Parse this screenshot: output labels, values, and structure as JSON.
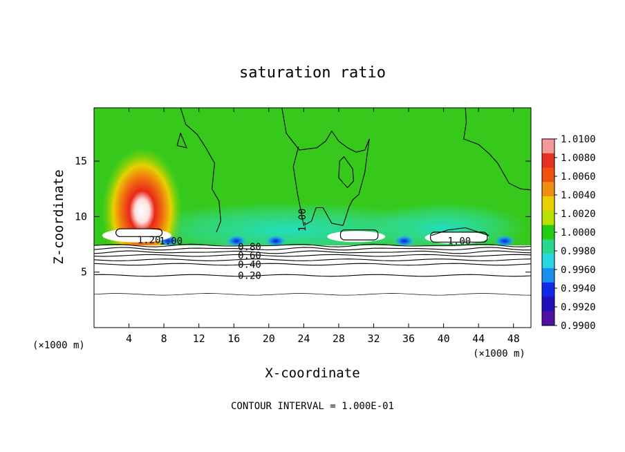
{
  "chart_data": {
    "type": "heatmap",
    "title": "saturation ratio",
    "xlabel": "X-coordinate",
    "ylabel": "Z-coordinate",
    "x_unit": "(×1000 m)",
    "x_unit_right": "(×1000 m)",
    "xlim": [
      0,
      50
    ],
    "ylim": [
      0,
      19.8
    ],
    "x_ticks": [
      4,
      8,
      12,
      16,
      20,
      24,
      28,
      32,
      36,
      40,
      44,
      48
    ],
    "y_ticks": [
      5,
      10,
      15
    ],
    "footer": "CONTOUR INTERVAL = 1.000E-01",
    "colorbar": {
      "min": 0.99,
      "max": 1.01,
      "labels": [
        "1.0100",
        "1.0080",
        "1.0060",
        "1.0040",
        "1.0020",
        "1.0000",
        "0.9980",
        "0.9960",
        "0.9940",
        "0.9920",
        "0.9900"
      ],
      "colors": [
        "#f29a9a",
        "#e83020",
        "#f05010",
        "#f08c10",
        "#e8d000",
        "#b8e000",
        "#22cc10",
        "#28d88c",
        "#28d8e0",
        "#1890f0",
        "#1028e8",
        "#2010b8",
        "#5010a0"
      ]
    },
    "contour_labels": [
      {
        "text": "1.20",
        "x": 6.3,
        "z": 7.9
      },
      {
        "text": "1.00",
        "x": 8.8,
        "z": 7.8
      },
      {
        "text": "0.80",
        "x": 17.8,
        "z": 7.3
      },
      {
        "text": "0.60",
        "x": 17.8,
        "z": 6.5
      },
      {
        "text": "0.40",
        "x": 17.8,
        "z": 5.7
      },
      {
        "text": "0.20",
        "x": 17.8,
        "z": 4.7
      },
      {
        "text": "1.00",
        "x": 24.2,
        "z": 10.0
      },
      {
        "text": "1.00",
        "x": 41.8,
        "z": 7.8
      }
    ],
    "contour_levels_z": [
      3.0,
      4.7,
      5.7,
      6.1,
      6.5,
      6.8,
      7.1,
      7.4
    ],
    "warm_region": {
      "x_center": 5.5,
      "z_center": 10.5,
      "peak_value": 1.01
    },
    "cold_spots_x": [
      8.5,
      16.3,
      20.8,
      35.5,
      47.0
    ]
  }
}
